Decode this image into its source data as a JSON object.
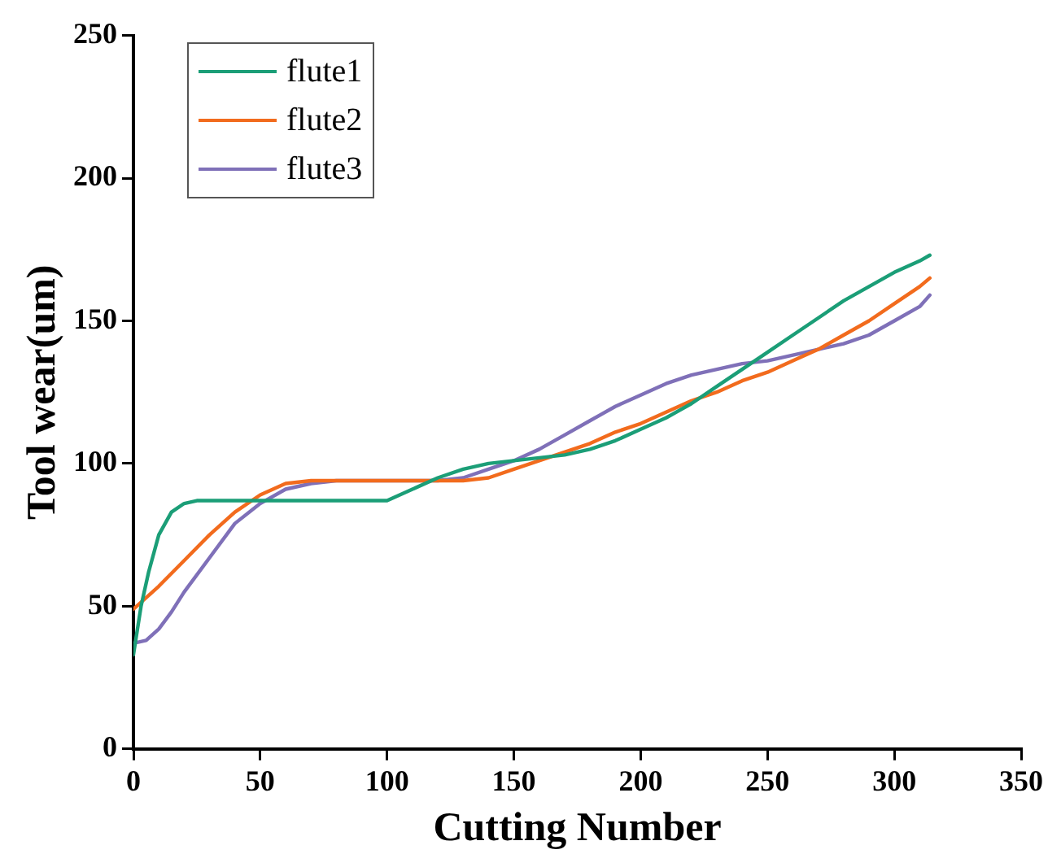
{
  "chart_data": {
    "type": "line",
    "xlabel": "Cutting Number",
    "ylabel": "Tool wear(um)",
    "xlim": [
      0,
      350
    ],
    "xticks": [
      0,
      50,
      100,
      150,
      200,
      250,
      300,
      350
    ],
    "ylim": [
      0,
      250
    ],
    "yticks": [
      0,
      50,
      100,
      150,
      200,
      250
    ],
    "grid": false,
    "legend": "top left",
    "marker": "none",
    "line_style": "solid",
    "series": [
      {
        "name": "flute1",
        "color": "#1b9e77",
        "x": [
          0,
          3,
          6,
          10,
          15,
          20,
          25,
          100,
          110,
          120,
          130,
          140,
          150,
          160,
          170,
          180,
          190,
          200,
          210,
          220,
          230,
          240,
          250,
          260,
          270,
          280,
          290,
          300,
          310,
          314
        ],
        "values": [
          33,
          50,
          62,
          75,
          83,
          86,
          87,
          87,
          91,
          95,
          98,
          100,
          101,
          102,
          103,
          105,
          108,
          112,
          116,
          121,
          127,
          133,
          139,
          145,
          151,
          157,
          162,
          167,
          171,
          173
        ]
      },
      {
        "name": "flute2",
        "color": "#f26b1d",
        "x": [
          0,
          10,
          20,
          30,
          40,
          50,
          60,
          70,
          130,
          140,
          150,
          160,
          170,
          180,
          190,
          200,
          210,
          220,
          230,
          240,
          250,
          260,
          270,
          280,
          290,
          300,
          310,
          314
        ],
        "values": [
          49,
          57,
          66,
          75,
          83,
          89,
          93,
          94,
          94,
          95,
          98,
          101,
          104,
          107,
          111,
          114,
          118,
          122,
          125,
          129,
          132,
          136,
          140,
          145,
          150,
          156,
          162,
          165
        ]
      },
      {
        "name": "flute3",
        "color": "#7f70b8",
        "x": [
          0,
          5,
          10,
          15,
          20,
          30,
          40,
          50,
          60,
          70,
          80,
          120,
          130,
          140,
          150,
          160,
          170,
          180,
          190,
          200,
          210,
          220,
          230,
          240,
          250,
          260,
          270,
          280,
          290,
          300,
          310,
          314
        ],
        "values": [
          37,
          38,
          42,
          48,
          55,
          67,
          79,
          86,
          91,
          93,
          94,
          94,
          95,
          98,
          101,
          105,
          110,
          115,
          120,
          124,
          128,
          131,
          133,
          135,
          136,
          138,
          140,
          142,
          145,
          150,
          155,
          159
        ]
      }
    ]
  }
}
